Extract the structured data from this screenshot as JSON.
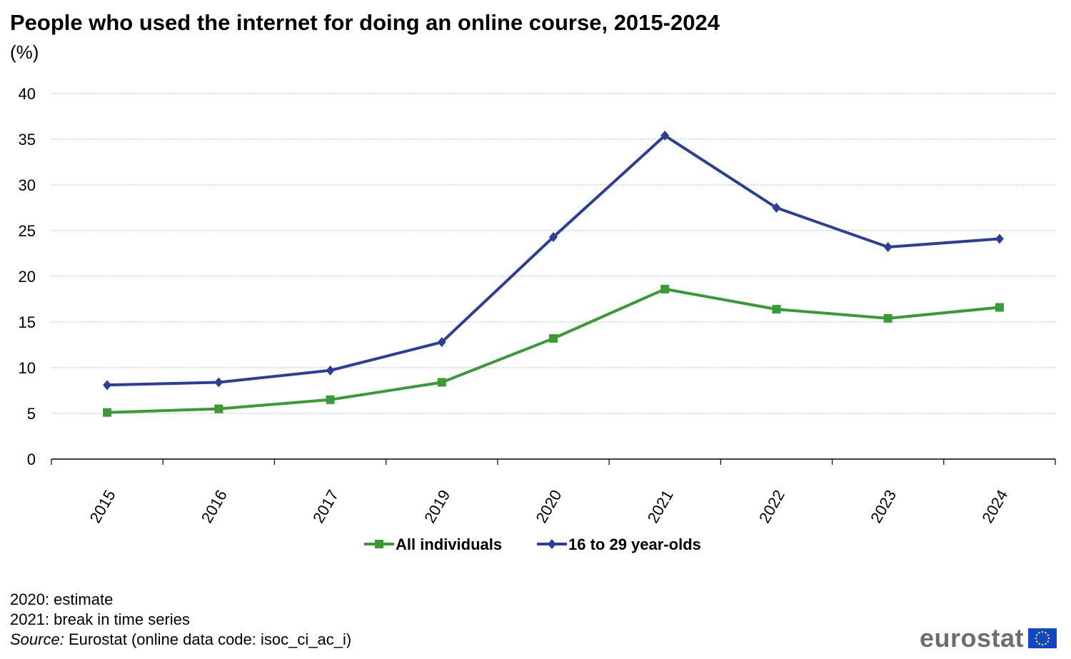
{
  "title": "People who used the internet for doing an online course, 2015-2024",
  "subtitle": "(%)",
  "notes": [
    "2020: estimate",
    "2021: break in time series"
  ],
  "source": {
    "label": "Source:",
    "text": " Eurostat (online data code: isoc_ci_ac_i)"
  },
  "logo": {
    "text": "eurostat",
    "icon": "eu-flag-icon"
  },
  "chart_data": {
    "type": "line",
    "categories": [
      "2015",
      "2016",
      "2017",
      "2019",
      "2020",
      "2021",
      "2022",
      "2023",
      "2024"
    ],
    "ylim": [
      0,
      40
    ],
    "yticks": [
      0,
      5,
      10,
      15,
      20,
      25,
      30,
      35,
      40
    ],
    "grid": true,
    "legend_position": "bottom",
    "series": [
      {
        "name": "All individuals",
        "color": "#3a9a35",
        "marker": "square",
        "values": [
          5.1,
          5.5,
          6.5,
          8.4,
          13.2,
          18.6,
          16.4,
          15.4,
          16.6
        ]
      },
      {
        "name": "16 to 29 year-olds",
        "color": "#2b3f98",
        "marker": "diamond",
        "values": [
          8.1,
          8.4,
          9.7,
          12.8,
          24.3,
          35.4,
          27.5,
          23.2,
          24.1
        ]
      }
    ]
  }
}
